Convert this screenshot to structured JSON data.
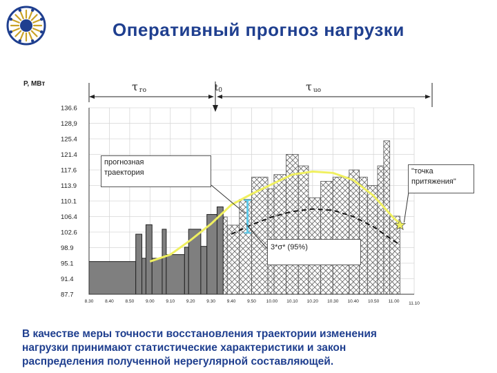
{
  "title": "Оперативный  прогноз  нагрузки",
  "caption_lines": [
    "В качестве меры точности восстановления траектории изменения",
    "нагрузки принимают статистические характеристики  и закон",
    "распределения полученной нерегулярной составляющей."
  ],
  "annotations": {
    "forecast_trajectory": [
      "прогнозная",
      "траектория"
    ],
    "sigma_band": "3*σ* (95%)",
    "attractor_point": [
      "\"точка",
      "притяжения\""
    ],
    "tau_go": "τ",
    "tau_go_sub": "го",
    "t0": "t",
    "t0_sub": "0",
    "tau_uo": "τ",
    "tau_uo_sub": "uo"
  },
  "colors": {
    "title": "#1f3f8f",
    "actual_fill": "#7f7f7f",
    "forecast_curve": "#f0f060",
    "hatch": "#555555"
  },
  "chart_data": {
    "type": "bar",
    "ylabel": "P, МВт",
    "xlabel": "",
    "y_ticks": [
      "87.7",
      "91.4",
      "95.1",
      "98.9",
      "102.6",
      "106.4",
      "110.1",
      "113.9",
      "117.6",
      "121.4",
      "125.4",
      "128,9",
      "136.6"
    ],
    "x_ticks": [
      "8.30",
      "8.40",
      "8.50",
      "9.00",
      "9.10",
      "9.20",
      "9.30",
      "9.40",
      "9.50",
      "10.00",
      "10.10",
      "10.20",
      "10.30",
      "10.40",
      "10.50",
      "11.00",
      "11.10"
    ],
    "actual_load": [
      {
        "start": "8.30",
        "end": "8.53",
        "value": 95.5
      },
      {
        "start": "8.53",
        "end": "8.56",
        "value": 102.1
      },
      {
        "start": "8.56",
        "end": "8.58",
        "value": 96.3
      },
      {
        "start": "8.58",
        "end": "9.01",
        "value": 104.4
      },
      {
        "start": "9.01",
        "end": "9.06",
        "value": 96.3
      },
      {
        "start": "9.06",
        "end": "9.08",
        "value": 103.3
      },
      {
        "start": "9.08",
        "end": "9.17",
        "value": 97.2
      },
      {
        "start": "9.17",
        "end": "9.19",
        "value": 99.0
      },
      {
        "start": "9.19",
        "end": "9.25",
        "value": 103.3
      },
      {
        "start": "9.25",
        "end": "9.28",
        "value": 99.2
      },
      {
        "start": "9.28",
        "end": "9.33",
        "value": 106.9
      },
      {
        "start": "9.33",
        "end": "9.36",
        "value": 108.7
      }
    ],
    "forecast_bars": [
      {
        "start": "9.36",
        "end": "9.38",
        "value": 106.3
      },
      {
        "start": "9.38",
        "end": "9.44",
        "value": 104.3
      },
      {
        "start": "9.44",
        "end": "9.50",
        "value": 110.5
      },
      {
        "start": "9.50",
        "end": "9.58",
        "value": 115.9
      },
      {
        "start": "9.58",
        "end": "10.01",
        "value": 113.1
      },
      {
        "start": "10.01",
        "end": "10.07",
        "value": 116.5
      },
      {
        "start": "10.07",
        "end": "10.13",
        "value": 121.4
      },
      {
        "start": "10.13",
        "end": "10.18",
        "value": 118.6
      },
      {
        "start": "10.18",
        "end": "10.24",
        "value": 110.9
      },
      {
        "start": "10.24",
        "end": "10.30",
        "value": 114.9
      },
      {
        "start": "10.30",
        "end": "10.38",
        "value": 115.9
      },
      {
        "start": "10.38",
        "end": "10.43",
        "value": 117.6
      },
      {
        "start": "10.43",
        "end": "10.47",
        "value": 115.9
      },
      {
        "start": "10.47",
        "end": "10.52",
        "value": 113.9
      },
      {
        "start": "10.52",
        "end": "10.55",
        "value": 118.6
      },
      {
        "start": "10.55",
        "end": "10.58",
        "value": 124.9
      },
      {
        "start": "10.58",
        "end": "11.03",
        "value": 106.5
      }
    ],
    "forecast_curve": [
      {
        "x": "9.00",
        "y": 95.5
      },
      {
        "x": "9.10",
        "y": 97.2
      },
      {
        "x": "9.20",
        "y": 100.7
      },
      {
        "x": "9.30",
        "y": 104.6
      },
      {
        "x": "9.40",
        "y": 109.2
      },
      {
        "x": "9.50",
        "y": 111.8
      },
      {
        "x": "10.00",
        "y": 114.2
      },
      {
        "x": "10.10",
        "y": 116.5
      },
      {
        "x": "10.20",
        "y": 117.2
      },
      {
        "x": "10.30",
        "y": 116.9
      },
      {
        "x": "10.40",
        "y": 115.2
      },
      {
        "x": "10.50",
        "y": 111.4
      },
      {
        "x": "11.00",
        "y": 106.0
      },
      {
        "x": "11.04",
        "y": 104.3
      }
    ],
    "lower_bound_curve": [
      {
        "x": "9.40",
        "y": 102.1
      },
      {
        "x": "9.50",
        "y": 104.4
      },
      {
        "x": "10.00",
        "y": 106.3
      },
      {
        "x": "10.10",
        "y": 107.6
      },
      {
        "x": "10.20",
        "y": 108.2
      },
      {
        "x": "10.30",
        "y": 107.9
      },
      {
        "x": "10.40",
        "y": 106.4
      },
      {
        "x": "10.50",
        "y": 103.9
      },
      {
        "x": "11.00",
        "y": 100.5
      },
      {
        "x": "11.03",
        "y": 99.6
      }
    ],
    "sigma_interval": {
      "x": "9.48",
      "low": 102.4,
      "high": 110.3
    },
    "t0": "9.36",
    "attractor": {
      "x": "11.03",
      "y": 104.3
    },
    "ylim": [
      87.7,
      136.6
    ],
    "xlim": [
      "8.30",
      "11.10"
    ]
  }
}
